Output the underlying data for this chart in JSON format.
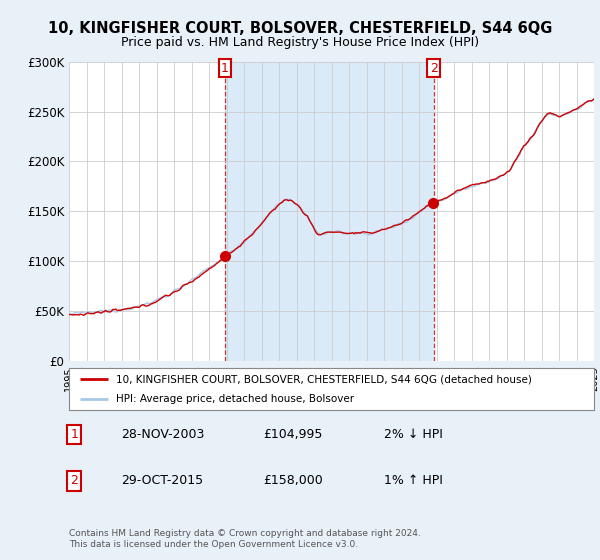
{
  "title": "10, KINGFISHER COURT, BOLSOVER, CHESTERFIELD, S44 6QG",
  "subtitle": "Price paid vs. HM Land Registry's House Price Index (HPI)",
  "background_color": "#e8f0f8",
  "plot_bg_color": "#ffffff",
  "highlight_color": "#daeaf8",
  "sale1_year": 2003.917,
  "sale1_label": "28-NOV-2003",
  "sale1_price": 104995,
  "sale1_hpi_diff": "2% ↓ HPI",
  "sale2_year": 2015.833,
  "sale2_label": "29-OCT-2015",
  "sale2_price": 158000,
  "sale2_hpi_diff": "1% ↑ HPI",
  "legend_label_red": "10, KINGFISHER COURT, BOLSOVER, CHESTERFIELD, S44 6QG (detached house)",
  "legend_label_blue": "HPI: Average price, detached house, Bolsover",
  "footer": "Contains HM Land Registry data © Crown copyright and database right 2024.\nThis data is licensed under the Open Government Licence v3.0.",
  "ylim": [
    0,
    300000
  ],
  "yticks": [
    0,
    50000,
    100000,
    150000,
    200000,
    250000,
    300000
  ],
  "ytick_labels": [
    "£0",
    "£50K",
    "£100K",
    "£150K",
    "£200K",
    "£250K",
    "£300K"
  ],
  "xstart_year": 1995,
  "xend_year": 2025
}
